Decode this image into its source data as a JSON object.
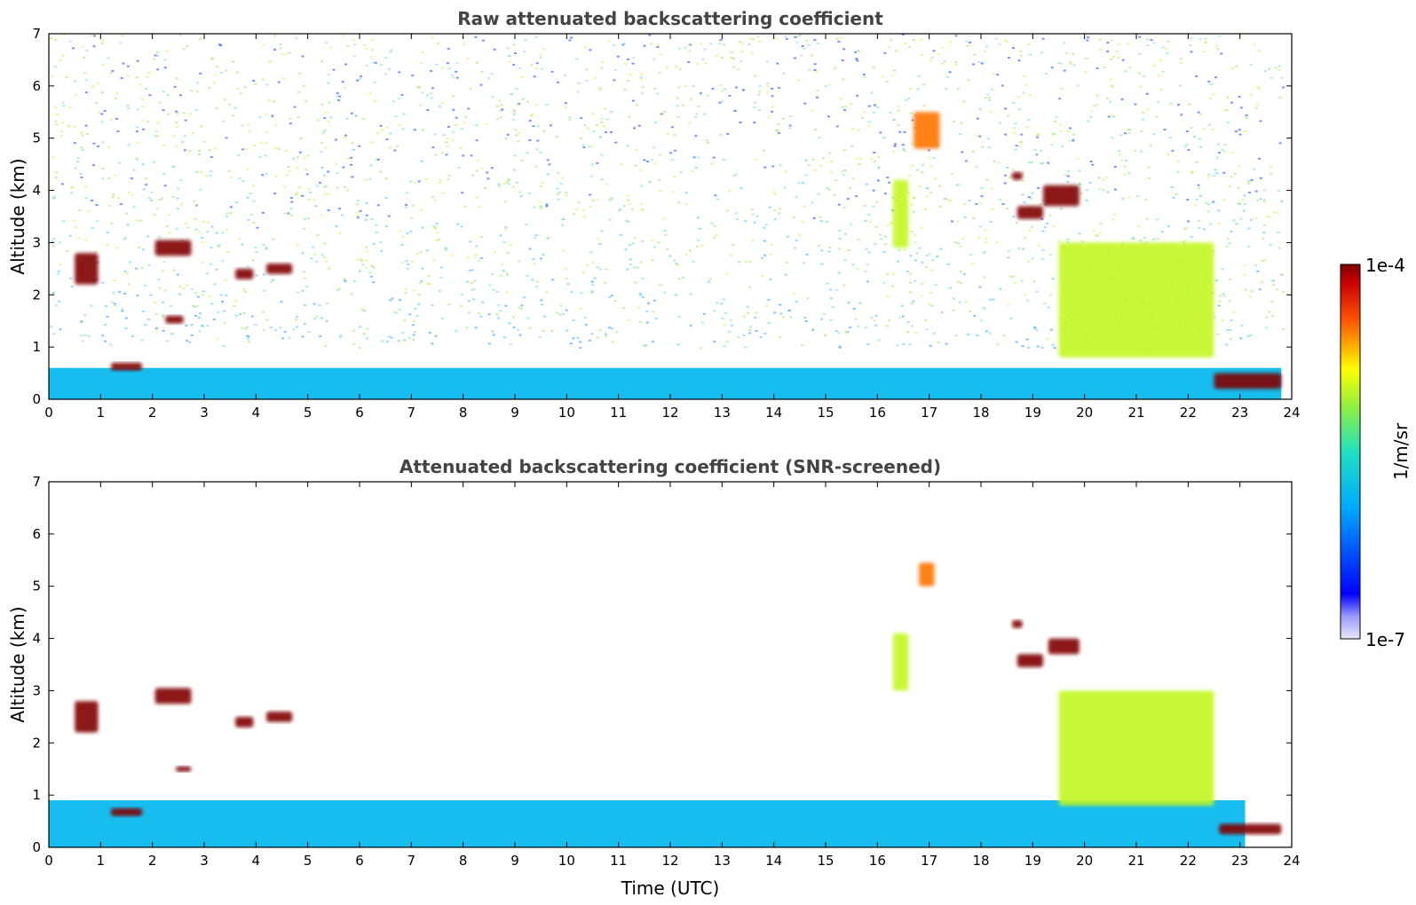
{
  "chart_data": [
    {
      "type": "heatmap",
      "title": "Raw attenuated backscattering coefficient",
      "ylabel": "Altitude (km)",
      "xlabel": "",
      "xlim": [
        0,
        24
      ],
      "ylim": [
        0,
        7
      ],
      "xticks": [
        "0",
        "1",
        "2",
        "3",
        "4",
        "5",
        "6",
        "7",
        "8",
        "9",
        "10",
        "11",
        "12",
        "13",
        "14",
        "15",
        "16",
        "17",
        "18",
        "19",
        "20",
        "21",
        "22",
        "23",
        "24"
      ],
      "yticks": [
        "0",
        "1",
        "2",
        "3",
        "4",
        "5",
        "6",
        "7"
      ],
      "screened": false,
      "features": [
        {
          "x": [
            0.0,
            23.8
          ],
          "y": [
            0.0,
            0.6
          ],
          "value": 1.5e-06
        },
        {
          "x": [
            0.5,
            0.95
          ],
          "y": [
            2.2,
            2.8
          ],
          "value": 0.0001
        },
        {
          "x": [
            1.2,
            1.8
          ],
          "y": [
            0.55,
            0.7
          ],
          "value": 0.0001
        },
        {
          "x": [
            2.05,
            2.75
          ],
          "y": [
            2.75,
            3.05
          ],
          "value": 0.0001
        },
        {
          "x": [
            2.25,
            2.6
          ],
          "y": [
            1.45,
            1.6
          ],
          "value": 0.0001
        },
        {
          "x": [
            3.6,
            3.95
          ],
          "y": [
            2.3,
            2.5
          ],
          "value": 0.0001
        },
        {
          "x": [
            4.2,
            4.7
          ],
          "y": [
            2.4,
            2.6
          ],
          "value": 0.0001
        },
        {
          "x": [
            16.3,
            16.6
          ],
          "y": [
            2.9,
            4.2
          ],
          "value": 1e-05
        },
        {
          "x": [
            16.7,
            17.2
          ],
          "y": [
            4.8,
            5.5
          ],
          "value": 3e-05
        },
        {
          "x": [
            18.6,
            18.8
          ],
          "y": [
            4.2,
            4.35
          ],
          "value": 0.0001
        },
        {
          "x": [
            19.2,
            19.9
          ],
          "y": [
            3.7,
            4.1
          ],
          "value": 0.0001
        },
        {
          "x": [
            18.7,
            19.2
          ],
          "y": [
            3.45,
            3.7
          ],
          "value": 0.0001
        },
        {
          "x": [
            19.5,
            22.5
          ],
          "y": [
            0.8,
            3.0
          ],
          "value": 1e-05
        },
        {
          "x": [
            22.5,
            23.8
          ],
          "y": [
            0.2,
            0.5
          ],
          "value": 0.0001
        }
      ]
    },
    {
      "type": "heatmap",
      "title": "Attenuated backscattering coefficient (SNR-screened)",
      "ylabel": "Altitude (km)",
      "xlabel": "Time (UTC)",
      "xlim": [
        0,
        24
      ],
      "ylim": [
        0,
        7
      ],
      "xticks": [
        "0",
        "1",
        "2",
        "3",
        "4",
        "5",
        "6",
        "7",
        "8",
        "9",
        "10",
        "11",
        "12",
        "13",
        "14",
        "15",
        "16",
        "17",
        "18",
        "19",
        "20",
        "21",
        "22",
        "23",
        "24"
      ],
      "yticks": [
        "0",
        "1",
        "2",
        "3",
        "4",
        "5",
        "6",
        "7"
      ],
      "screened": true,
      "features": [
        {
          "x": [
            0.0,
            23.1
          ],
          "y": [
            0.0,
            0.9
          ],
          "value": 1.5e-06
        },
        {
          "x": [
            0.5,
            0.95
          ],
          "y": [
            2.2,
            2.8
          ],
          "value": 0.0001
        },
        {
          "x": [
            1.2,
            1.8
          ],
          "y": [
            0.6,
            0.75
          ],
          "value": 0.0001
        },
        {
          "x": [
            2.05,
            2.75
          ],
          "y": [
            2.75,
            3.05
          ],
          "value": 0.0001
        },
        {
          "x": [
            2.45,
            2.75
          ],
          "y": [
            1.45,
            1.55
          ],
          "value": 0.0001
        },
        {
          "x": [
            3.6,
            3.95
          ],
          "y": [
            2.3,
            2.5
          ],
          "value": 0.0001
        },
        {
          "x": [
            4.2,
            4.7
          ],
          "y": [
            2.4,
            2.6
          ],
          "value": 0.0001
        },
        {
          "x": [
            16.3,
            16.6
          ],
          "y": [
            3.0,
            4.1
          ],
          "value": 1e-05
        },
        {
          "x": [
            16.8,
            17.1
          ],
          "y": [
            5.0,
            5.45
          ],
          "value": 3e-05
        },
        {
          "x": [
            18.6,
            18.8
          ],
          "y": [
            4.2,
            4.35
          ],
          "value": 0.0001
        },
        {
          "x": [
            19.3,
            19.9
          ],
          "y": [
            3.7,
            4.0
          ],
          "value": 0.0001
        },
        {
          "x": [
            18.7,
            19.2
          ],
          "y": [
            3.45,
            3.7
          ],
          "value": 0.0001
        },
        {
          "x": [
            19.5,
            22.5
          ],
          "y": [
            0.8,
            3.0
          ],
          "value": 1e-05
        },
        {
          "x": [
            22.6,
            23.8
          ],
          "y": [
            0.25,
            0.45
          ],
          "value": 0.0001
        }
      ]
    }
  ],
  "colorbar": {
    "label": "1/m/sr",
    "min_label": "1e-7",
    "max_label": "1e-4",
    "scale": "log",
    "colormap": "jet"
  }
}
